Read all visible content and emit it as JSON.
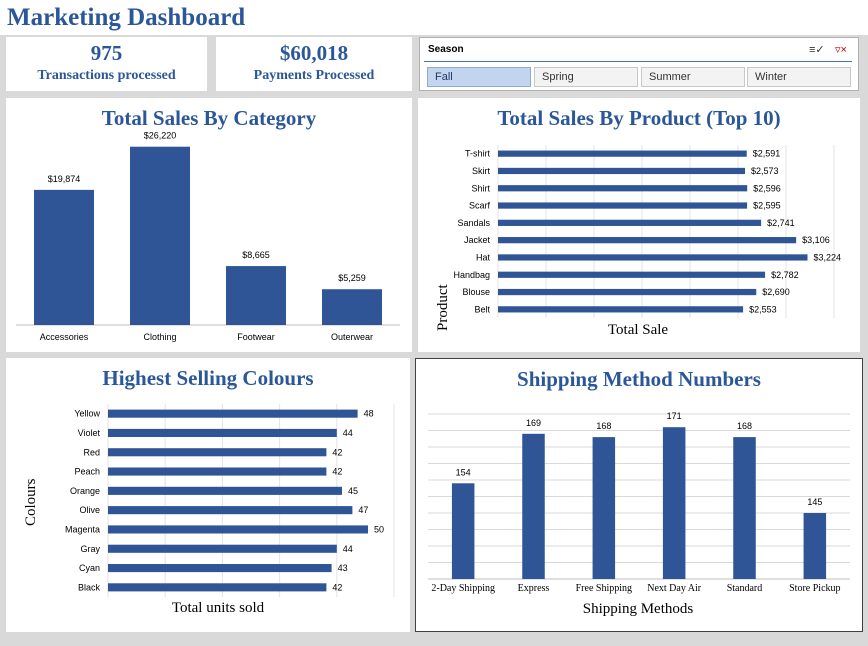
{
  "dashboard": {
    "title": "Marketing Dashboard"
  },
  "kpis": [
    {
      "value": "975",
      "label": "Transactions processed"
    },
    {
      "value": "$60,018",
      "label": "Payments Processed"
    }
  ],
  "slicer": {
    "title": "Season",
    "options": [
      "Fall",
      "Spring",
      "Summer",
      "Winter"
    ],
    "selected": "Fall",
    "icons": [
      "multi-select-icon",
      "clear-filter-icon"
    ]
  },
  "colors": {
    "bar": "#2f5597",
    "title": "#2b579a"
  },
  "chart_data": [
    {
      "type": "bar",
      "title": "Total Sales By Category",
      "categories": [
        "Accessories",
        "Clothing",
        "Footwear",
        "Outerwear"
      ],
      "values": [
        19874,
        26220,
        8665,
        5259
      ],
      "data_labels": [
        "$19,874",
        "$26,220",
        "$8,665",
        "$5,259"
      ],
      "ylim": [
        0,
        30000
      ]
    },
    {
      "type": "bar",
      "orientation": "horizontal",
      "title": "Total Sales By Product (Top 10)",
      "xlabel": "Total Sale",
      "ylabel": "Product",
      "categories": [
        "T-shirt",
        "Skirt",
        "Shirt",
        "Scarf",
        "Sandals",
        "Jacket",
        "Hat",
        "Handbag",
        "Blouse",
        "Belt"
      ],
      "values": [
        2591,
        2573,
        2596,
        2595,
        2741,
        3106,
        3224,
        2782,
        2690,
        2553
      ],
      "data_labels": [
        "$2,591",
        "$2,573",
        "$2,596",
        "$2,595",
        "$2,741",
        "$3,106",
        "$3,224",
        "$2,782",
        "$2,690",
        "$2,553"
      ],
      "xlim": [
        0,
        3500
      ]
    },
    {
      "type": "bar",
      "orientation": "horizontal",
      "title": "Highest Selling Colours",
      "xlabel": "Total units sold",
      "ylabel": "Colours",
      "categories": [
        "Yellow",
        "Violet",
        "Red",
        "Peach",
        "Orange",
        "Olive",
        "Magenta",
        "Gray",
        "Cyan",
        "Black"
      ],
      "values": [
        48,
        44,
        42,
        42,
        45,
        47,
        50,
        44,
        43,
        42
      ],
      "data_labels": [
        "48",
        "44",
        "42",
        "42",
        "45",
        "47",
        "50",
        "44",
        "43",
        "42"
      ],
      "xlim": [
        0,
        55
      ]
    },
    {
      "type": "bar",
      "title": "Shipping Method Numbers",
      "xlabel": "Shipping Methods",
      "categories": [
        "2-Day Shipping",
        "Express",
        "Free Shipping",
        "Next Day Air",
        "Standard",
        "Store Pickup"
      ],
      "values": [
        154,
        169,
        168,
        171,
        168,
        145
      ],
      "data_labels": [
        "154",
        "169",
        "168",
        "171",
        "168",
        "145"
      ],
      "ylim": [
        125,
        175
      ],
      "grid": true
    }
  ]
}
